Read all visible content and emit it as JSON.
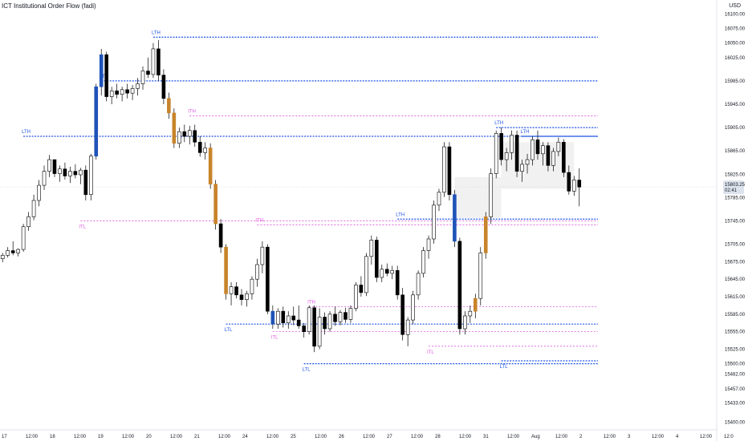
{
  "indicator_title": "ICT Institutional Order Flow (fadi)",
  "currency": "USD",
  "price_label": {
    "value": "15803.25",
    "countdown": "02:41"
  },
  "colors": {
    "background": "#ffffff",
    "candle_up": "#ffffff",
    "candle_down": "#000000",
    "candle_wick": "#000000",
    "candle_bullish_signal": "#1e53b8",
    "candle_bearish_signal": "#c8842a",
    "level_ltf": "#1e53e5",
    "level_itf": "#e056e0",
    "sibi_gap": "#e8e8e8",
    "axis_text": "#131722",
    "price_tag": "#dde3ec"
  },
  "chart_data": {
    "type": "candlestick",
    "title": "ICT Institutional Order Flow (fadi)",
    "currency": "USD",
    "y_ticks": [
      16100.0,
      16075.0,
      16050.0,
      16025.0,
      15985.0,
      15945.0,
      15905.0,
      15865.0,
      15825.0,
      15785.0,
      15745.0,
      15705.0,
      15675.0,
      15645.0,
      15615.0,
      15585.0,
      15555.0,
      15525.0,
      15500.0,
      15482.0,
      15457.0,
      15433.0,
      15400.0
    ],
    "x_ticks": [
      "17",
      "12:00",
      "18",
      "12:00",
      "19",
      "12:00",
      "20",
      "12:00",
      "21",
      "12:00",
      "24",
      "12:00",
      "25",
      "12:00",
      "26",
      "12:00",
      "27",
      "12:00",
      "28",
      "12:00",
      "31",
      "12:00",
      "Aug",
      "12:00",
      "2",
      "12:00",
      "3",
      "12:00",
      "4",
      "12:00",
      "12:0"
    ],
    "last_price": 15803.25,
    "candles": [
      [
        15680,
        15690,
        15674,
        15686
      ],
      [
        15686,
        15700,
        15682,
        15694
      ],
      [
        15694,
        15710,
        15686,
        15690
      ],
      [
        15690,
        15698,
        15684,
        15696
      ],
      [
        15696,
        15740,
        15692,
        15735
      ],
      [
        15735,
        15760,
        15728,
        15752
      ],
      [
        15752,
        15790,
        15746,
        15780
      ],
      [
        15780,
        15815,
        15770,
        15806
      ],
      [
        15806,
        15840,
        15798,
        15830
      ],
      [
        15830,
        15858,
        15820,
        15850
      ],
      [
        15850,
        15845,
        15820,
        15826
      ],
      [
        15826,
        15840,
        15812,
        15834
      ],
      [
        15834,
        15845,
        15816,
        15822
      ],
      [
        15822,
        15838,
        15810,
        15830
      ],
      [
        15830,
        15842,
        15818,
        15824
      ],
      [
        15824,
        15836,
        15808,
        15832
      ],
      [
        15832,
        15840,
        15780,
        15790
      ],
      [
        15790,
        15860,
        15780,
        15856
      ],
      [
        15856,
        15980,
        15850,
        15975
      ],
      [
        15975,
        16040,
        15960,
        16030
      ],
      [
        16030,
        16035,
        15950,
        15958
      ],
      [
        15958,
        15975,
        15945,
        15968
      ],
      [
        15968,
        15980,
        15955,
        15962
      ],
      [
        15962,
        15975,
        15950,
        15970
      ],
      [
        15970,
        15980,
        15955,
        15964
      ],
      [
        15964,
        15978,
        15952,
        15972
      ],
      [
        15972,
        15990,
        15960,
        15980
      ],
      [
        15980,
        16010,
        15970,
        16002
      ],
      [
        16002,
        16025,
        15990,
        15996
      ],
      [
        15996,
        16050,
        15990,
        16040
      ],
      [
        16040,
        16055,
        15985,
        15995
      ],
      [
        15995,
        16005,
        15945,
        15955
      ],
      [
        15955,
        15965,
        15920,
        15930
      ],
      [
        15930,
        15938,
        15870,
        15878
      ],
      [
        15878,
        15905,
        15870,
        15898
      ],
      [
        15898,
        15910,
        15880,
        15890
      ],
      [
        15890,
        15908,
        15876,
        15900
      ],
      [
        15900,
        15910,
        15872,
        15880
      ],
      [
        15880,
        15890,
        15855,
        15862
      ],
      [
        15862,
        15880,
        15850,
        15870
      ],
      [
        15870,
        15878,
        15800,
        15808
      ],
      [
        15808,
        15815,
        15730,
        15740
      ],
      [
        15740,
        15748,
        15690,
        15700
      ],
      [
        15700,
        15705,
        15610,
        15620
      ],
      [
        15620,
        15640,
        15600,
        15632
      ],
      [
        15632,
        15640,
        15612,
        15618
      ],
      [
        15618,
        15628,
        15600,
        15610
      ],
      [
        15610,
        15625,
        15598,
        15620
      ],
      [
        15620,
        15650,
        15610,
        15645
      ],
      [
        15645,
        15680,
        15632,
        15670
      ],
      [
        15670,
        15710,
        15655,
        15700
      ],
      [
        15700,
        15705,
        15585,
        15590
      ],
      [
        15590,
        15600,
        15560,
        15568
      ],
      [
        15568,
        15595,
        15560,
        15590
      ],
      [
        15590,
        15598,
        15562,
        15570
      ],
      [
        15570,
        15590,
        15560,
        15582
      ],
      [
        15582,
        15598,
        15566,
        15575
      ],
      [
        15575,
        15600,
        15560,
        15565
      ],
      [
        15565,
        15570,
        15545,
        15555
      ],
      [
        15555,
        15600,
        15550,
        15596
      ],
      [
        15596,
        15600,
        15520,
        15530
      ],
      [
        15530,
        15595,
        15525,
        15580
      ],
      [
        15580,
        15588,
        15550,
        15560
      ],
      [
        15560,
        15590,
        15555,
        15585
      ],
      [
        15585,
        15598,
        15565,
        15572
      ],
      [
        15572,
        15592,
        15566,
        15588
      ],
      [
        15588,
        15596,
        15570,
        15576
      ],
      [
        15576,
        15600,
        15570,
        15595
      ],
      [
        15595,
        15640,
        15590,
        15635
      ],
      [
        15635,
        15650,
        15615,
        15622
      ],
      [
        15622,
        15690,
        15616,
        15684
      ],
      [
        15684,
        15720,
        15670,
        15712
      ],
      [
        15712,
        15718,
        15640,
        15648
      ],
      [
        15648,
        15670,
        15640,
        15662
      ],
      [
        15662,
        15672,
        15650,
        15655
      ],
      [
        15655,
        15668,
        15645,
        15660
      ],
      [
        15660,
        15668,
        15610,
        15618
      ],
      [
        15618,
        15630,
        15540,
        15550
      ],
      [
        15550,
        15580,
        15530,
        15575
      ],
      [
        15575,
        15625,
        15568,
        15618
      ],
      [
        15618,
        15660,
        15610,
        15655
      ],
      [
        15655,
        15700,
        15648,
        15694
      ],
      [
        15694,
        15720,
        15680,
        15714
      ],
      [
        15714,
        15780,
        15706,
        15772
      ],
      [
        15772,
        15800,
        15762,
        15794
      ],
      [
        15794,
        15880,
        15786,
        15872
      ],
      [
        15872,
        15880,
        15780,
        15790
      ],
      [
        15790,
        15798,
        15700,
        15710
      ],
      [
        15710,
        15716,
        15550,
        15560
      ],
      [
        15560,
        15590,
        15550,
        15582
      ],
      [
        15582,
        15600,
        15570,
        15590
      ],
      [
        15590,
        15620,
        15578,
        15612
      ],
      [
        15612,
        15700,
        15600,
        15690
      ],
      [
        15690,
        15760,
        15680,
        15752
      ],
      [
        15752,
        15835,
        15740,
        15826
      ],
      [
        15826,
        15900,
        15818,
        15895
      ],
      [
        15895,
        15905,
        15840,
        15850
      ],
      [
        15850,
        15870,
        15830,
        15862
      ],
      [
        15862,
        15900,
        15850,
        15892
      ],
      [
        15892,
        15900,
        15820,
        15830
      ],
      [
        15830,
        15850,
        15812,
        15842
      ],
      [
        15842,
        15860,
        15826,
        15850
      ],
      [
        15850,
        15890,
        15840,
        15884
      ],
      [
        15884,
        15900,
        15850,
        15860
      ],
      [
        15860,
        15880,
        15840,
        15874
      ],
      [
        15874,
        15880,
        15830,
        15840
      ],
      [
        15840,
        15870,
        15830,
        15864
      ],
      [
        15864,
        15888,
        15856,
        15880
      ],
      [
        15880,
        15885,
        15820,
        15828
      ],
      [
        15828,
        15840,
        15790,
        15796
      ],
      [
        15796,
        15822,
        15788,
        15815
      ],
      [
        15815,
        15835,
        15770,
        15803
      ]
    ],
    "levels": [
      {
        "label": "LTH",
        "price": 16060,
        "start_index": 29,
        "kind": "LTF"
      },
      {
        "label": "LTH",
        "price": 15985,
        "start_index": 19,
        "kind": "LTF"
      },
      {
        "label": "LTH",
        "price": 15890,
        "start_index": 4,
        "kind": "LTF"
      },
      {
        "label": "LTH",
        "price": 15890,
        "start_index": 100,
        "kind": "LTF"
      },
      {
        "label": "LTH",
        "price": 15748,
        "start_index": 76,
        "kind": "LTF"
      },
      {
        "label": "LTH",
        "price": 15905,
        "start_index": 95,
        "kind": "LTF"
      },
      {
        "label": "LTL",
        "price": 15500,
        "start_index": 58,
        "kind": "LTF"
      },
      {
        "label": "LTL",
        "price": 15505,
        "start_index": 96,
        "kind": "LTF"
      },
      {
        "label": "LTL",
        "price": 15568,
        "start_index": 43,
        "kind": "LTF"
      },
      {
        "label": "ITH",
        "price": 15925,
        "start_index": 36,
        "kind": "ITF"
      },
      {
        "label": "ITH",
        "price": 15738,
        "start_index": 49,
        "kind": "ITF"
      },
      {
        "label": "ITH",
        "price": 15598,
        "start_index": 59,
        "kind": "ITF"
      },
      {
        "label": "ITL",
        "price": 15745,
        "start_index": 15,
        "kind": "ITF"
      },
      {
        "label": "ITL",
        "price": 15555,
        "start_index": 52,
        "kind": "ITF"
      },
      {
        "label": "ITL",
        "price": 15530,
        "start_index": 82,
        "kind": "ITF"
      }
    ],
    "level_labels": [
      "LTH",
      "LTL",
      "ITH",
      "ITL"
    ],
    "signals": {
      "bullish_indices": [
        18,
        19,
        52,
        87
      ],
      "bearish_indices": [
        32,
        33,
        40,
        41,
        43,
        91,
        93,
        113
      ]
    },
    "grid": false
  }
}
